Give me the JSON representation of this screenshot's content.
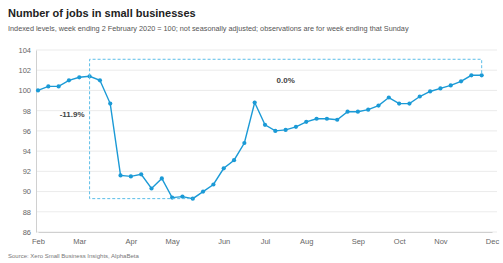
{
  "chart_data": {
    "type": "line",
    "title": "Number of jobs in small businesses",
    "subtitle": "Indexed levels, week ending 2 February 2020 = 100; not seasonally adjusted; observations are for week ending that Sunday",
    "source": "Source: Xero Small Business Insights, AlphaBeta",
    "categories": [
      "Feb",
      null,
      null,
      null,
      "Mar",
      null,
      null,
      null,
      null,
      "Apr",
      null,
      null,
      null,
      "May",
      null,
      null,
      null,
      null,
      "Jun",
      null,
      null,
      null,
      "Jul",
      null,
      null,
      null,
      "Aug",
      null,
      null,
      null,
      null,
      "Sep",
      null,
      null,
      null,
      "Oct",
      null,
      null,
      null,
      "Nov",
      null,
      null,
      null,
      null,
      "Dec"
    ],
    "values": [
      100.0,
      100.4,
      100.4,
      101.0,
      101.3,
      101.4,
      101.0,
      98.7,
      91.6,
      91.5,
      91.7,
      90.3,
      91.3,
      89.4,
      89.5,
      89.3,
      90.0,
      90.7,
      92.3,
      93.1,
      94.8,
      98.8,
      96.6,
      96.0,
      96.1,
      96.4,
      96.9,
      97.2,
      97.2,
      97.1,
      97.9,
      97.9,
      98.1,
      98.5,
      99.3,
      98.7,
      98.7,
      99.4,
      99.9,
      100.2,
      100.5,
      100.9,
      101.5,
      101.5,
      null
    ],
    "color": "#1b9ad6",
    "marker": "circle",
    "line_style": "solid",
    "ylim": [
      86,
      104
    ],
    "yticks": [
      86,
      88,
      90,
      92,
      94,
      96,
      98,
      100,
      102,
      104
    ],
    "grid": true,
    "annotations": [
      "-11.9%",
      "0.0%"
    ]
  }
}
